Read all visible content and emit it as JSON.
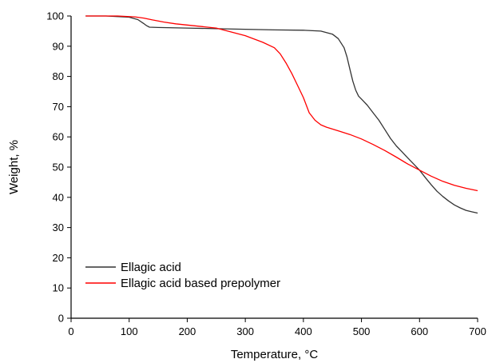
{
  "chart_data": {
    "type": "line",
    "xlabel": "Temperature, °C",
    "ylabel": "Weight, %",
    "xlim": [
      0,
      700
    ],
    "ylim": [
      0,
      100
    ],
    "x_ticks": [
      0,
      100,
      200,
      300,
      400,
      500,
      600,
      700
    ],
    "y_ticks": [
      0,
      10,
      20,
      30,
      40,
      50,
      60,
      70,
      80,
      90,
      100
    ],
    "grid": false,
    "legend_position": "bottom-left",
    "series": [
      {
        "name": "Ellagic acid",
        "color": "#333333",
        "x": [
          25,
          60,
          100,
          115,
          125,
          130,
          135,
          150,
          200,
          250,
          300,
          350,
          400,
          430,
          450,
          460,
          470,
          475,
          480,
          485,
          490,
          495,
          500,
          510,
          520,
          530,
          540,
          550,
          560,
          570,
          580,
          590,
          600,
          610,
          620,
          630,
          640,
          650,
          660,
          670,
          680,
          690,
          700
        ],
        "y": [
          100,
          100,
          99.6,
          98.8,
          97.5,
          96.8,
          96.3,
          96.2,
          96.0,
          95.8,
          95.6,
          95.4,
          95.3,
          95.0,
          94.0,
          92.5,
          89.5,
          86.5,
          82.5,
          78.5,
          75.5,
          73.5,
          72.5,
          70.5,
          68.0,
          65.5,
          62.5,
          59.5,
          57.0,
          55.0,
          53.0,
          51.0,
          49.0,
          46.5,
          44.2,
          42.0,
          40.3,
          38.8,
          37.5,
          36.5,
          35.7,
          35.2,
          34.8
        ]
      },
      {
        "name": "Ellagic acid based prepolymer",
        "color": "#ff0000",
        "x": [
          25,
          80,
          110,
          125,
          140,
          160,
          180,
          200,
          250,
          300,
          330,
          350,
          360,
          370,
          380,
          390,
          400,
          410,
          420,
          430,
          440,
          460,
          480,
          500,
          520,
          540,
          560,
          580,
          600,
          620,
          640,
          660,
          680,
          700
        ],
        "y": [
          100,
          100,
          99.7,
          99.3,
          98.7,
          98.0,
          97.4,
          97.0,
          96.0,
          93.5,
          91.3,
          89.5,
          87.5,
          84.5,
          81.0,
          77.0,
          73.0,
          68.0,
          65.5,
          64.0,
          63.2,
          62.0,
          60.8,
          59.3,
          57.5,
          55.5,
          53.3,
          51.0,
          49.0,
          47.0,
          45.3,
          44.0,
          43.0,
          42.2
        ]
      }
    ]
  }
}
